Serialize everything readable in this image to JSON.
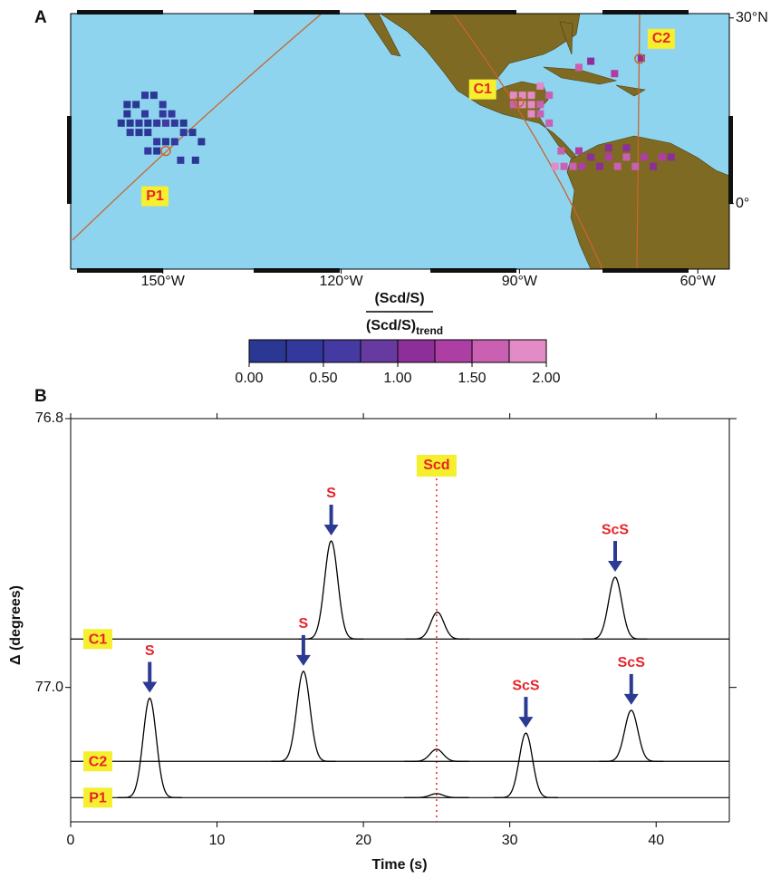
{
  "panel_a": {
    "label": "A",
    "xlim": [
      -165.5,
      -54.7
    ],
    "ylim": [
      -10.6,
      30.7
    ],
    "xticks": [
      {
        "value": -150,
        "label": "150°W"
      },
      {
        "value": -120,
        "label": "120°W"
      },
      {
        "value": -90,
        "label": "90°W"
      },
      {
        "value": -60,
        "label": "60°W"
      }
    ],
    "yticks": [
      {
        "value": 30,
        "label": "30°N"
      },
      {
        "value": 0,
        "label": "0°"
      }
    ],
    "stations": [
      {
        "label": "P1",
        "lon": -149.5,
        "lat": 8.5
      },
      {
        "label": "C1",
        "lon": -90.1,
        "lat": 16.4
      },
      {
        "label": "C2",
        "lon": -69.8,
        "lat": 23.4
      }
    ],
    "cells": {
      "lon": [
        -156,
        -154.5,
        -153,
        -151.5,
        -150,
        -148.5,
        -157,
        -155.5,
        -154,
        -152.5,
        -151,
        -149.5,
        -148,
        -146.5,
        -155.5,
        -154,
        -152.5,
        -151,
        -149.5,
        -148,
        -146.5,
        -145,
        -143.5,
        -152.5,
        -151,
        -147,
        -144.5,
        -153,
        -156,
        -150,
        -91,
        -89.5,
        -88,
        -91,
        -89.5,
        -88,
        -86.5,
        -88,
        -86.5,
        -85,
        -86.5,
        -85,
        -84,
        -82.5,
        -81,
        -79.5,
        -78,
        -76.5,
        -75,
        -73.5,
        -72,
        -70.5,
        -69,
        -67.5,
        -66,
        -64.5,
        -72,
        -75,
        -80,
        -83,
        -78,
        -74,
        -80,
        -69.5
      ],
      "lat": [
        16,
        16,
        17.5,
        17.5,
        16,
        14.5,
        13,
        13,
        13,
        13,
        13,
        13,
        13,
        13,
        11.5,
        11.5,
        11.5,
        10,
        10,
        10,
        11.5,
        11.5,
        10,
        8.5,
        8.5,
        7,
        7,
        14.5,
        14.5,
        14.5,
        17.5,
        17.5,
        17.5,
        16,
        16,
        16,
        16,
        14.5,
        14.5,
        13,
        19,
        17.5,
        6,
        6,
        6,
        6,
        7.5,
        6,
        7.5,
        6,
        7.5,
        6,
        7.5,
        6,
        7.5,
        7.5,
        9,
        9,
        8.5,
        8.5,
        23,
        21,
        22,
        23.5
      ],
      "values": [
        0.2,
        0.1,
        0.3,
        0.2,
        0.4,
        0.3,
        0.1,
        0.2,
        0.3,
        0.2,
        0.4,
        0.5,
        0.3,
        0.2,
        0.3,
        0.2,
        0.1,
        0.3,
        0.2,
        0.4,
        0.3,
        0.2,
        0.1,
        0.3,
        0.2,
        0.3,
        0.2,
        0.4,
        0.2,
        0.3,
        1.8,
        1.9,
        2.0,
        1.7,
        1.8,
        1.9,
        1.6,
        1.8,
        1.7,
        1.5,
        1.9,
        1.6,
        1.8,
        1.7,
        1.6,
        1.3,
        1.2,
        1.1,
        1.3,
        1.5,
        1.6,
        1.7,
        1.4,
        1.2,
        1.3,
        1.0,
        1.2,
        1.1,
        1.4,
        1.5,
        1.2,
        1.3,
        1.6,
        1.1
      ]
    },
    "colorbar": {
      "title": "(Scd/S)",
      "denominator": "(Scd/S)",
      "subscript": "trend",
      "lim": [
        0,
        2
      ],
      "ticks": [
        {
          "value": 0,
          "label": "0.00"
        },
        {
          "value": 0.5,
          "label": "0.50"
        },
        {
          "value": 1,
          "label": "1.00"
        },
        {
          "value": 1.5,
          "label": "1.50"
        },
        {
          "value": 2,
          "label": "2.00"
        }
      ],
      "colors": [
        "#2a3893",
        "#33399c",
        "#443aa2",
        "#663a9f",
        "#8c2f98",
        "#ad3ea3",
        "#c960b1",
        "#e28bc6"
      ]
    }
  },
  "chart_data": {
    "type": "waveform",
    "label": "B",
    "xlabel": "Time (s)",
    "ylabel": "Δ (degrees)",
    "xlim": [
      0,
      45
    ],
    "xticks": [
      0,
      10,
      20,
      30,
      40
    ],
    "ylim": [
      76.8,
      77.1
    ],
    "yticks": [
      76.8,
      {
        "value": 77,
        "label": "77.0"
      }
    ],
    "y_inverted": true,
    "marker": {
      "label": "Scd",
      "time": 25
    },
    "traces": [
      {
        "name": "C1",
        "distance": 76.964,
        "pulses": [
          {
            "time": 17.8,
            "amplitude": 0.073,
            "label": "S"
          },
          {
            "time": 25.05,
            "amplitude": 0.02
          },
          {
            "time": 37.2,
            "amplitude": 0.046,
            "label": "ScS"
          }
        ]
      },
      {
        "name": "C2",
        "distance": 77.055,
        "pulses": [
          {
            "time": 15.9,
            "amplitude": 0.067,
            "label": "S"
          },
          {
            "time": 25.0,
            "amplitude": 0.009
          },
          {
            "time": 38.3,
            "amplitude": 0.038,
            "label": "ScS"
          }
        ]
      },
      {
        "name": "P1",
        "distance": 77.082,
        "pulses": [
          {
            "time": 5.4,
            "amplitude": 0.074,
            "label": "S"
          },
          {
            "time": 25.0,
            "amplitude": 0.003
          },
          {
            "time": 31.1,
            "amplitude": 0.048,
            "label": "ScS"
          }
        ]
      }
    ]
  }
}
